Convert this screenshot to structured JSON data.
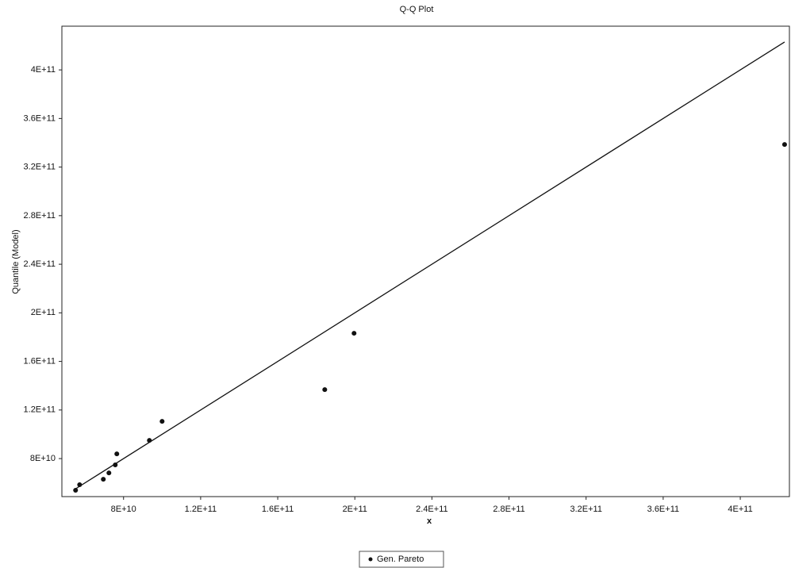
{
  "chart_data": {
    "type": "scatter",
    "title": "Q-Q Plot",
    "x_label": "x",
    "y_label": "Quantile (Model)",
    "series": [
      {
        "name": "Gen. Pareto",
        "color": "#111111",
        "x": [
          55100000000.0,
          57200000000.0,
          69500000000.0,
          72400000000.0,
          75700000000.0,
          76500000000.0,
          93400000000.0,
          100000000000.0,
          184400000000.0,
          199600000000.0,
          423000000000.0
        ],
        "values": [
          53900000000.0,
          58500000000.0,
          63000000000.0,
          68200000000.0,
          74800000000.0,
          83900000000.0,
          95000000000.0,
          110700000000.0,
          136800000000.0,
          183200000000.0,
          338600000000.0
        ]
      }
    ],
    "reference_line": {
      "color": "#111111",
      "x": [
        54000000000.0,
        423000000000.0
      ],
      "values": [
        54000000000.0,
        423000000000.0
      ]
    },
    "xlim": [
      48000000000.0,
      425500000000.0
    ],
    "ylim": [
      48700000000.0,
      436000000000.0
    ],
    "xticks": [
      {
        "value": 80000000000.0,
        "label": "8E+10"
      },
      {
        "value": 120000000000.0,
        "label": "1.2E+11"
      },
      {
        "value": 160000000000.0,
        "label": "1.6E+11"
      },
      {
        "value": 200000000000.0,
        "label": "2E+11"
      },
      {
        "value": 240000000000.0,
        "label": "2.4E+11"
      },
      {
        "value": 280000000000.0,
        "label": "2.8E+11"
      },
      {
        "value": 320000000000.0,
        "label": "3.2E+11"
      },
      {
        "value": 360000000000.0,
        "label": "3.6E+11"
      },
      {
        "value": 400000000000.0,
        "label": "4E+11"
      }
    ],
    "yticks": [
      {
        "value": 80000000000.0,
        "label": "8E+10"
      },
      {
        "value": 120000000000.0,
        "label": "1.2E+11"
      },
      {
        "value": 160000000000.0,
        "label": "1.6E+11"
      },
      {
        "value": 200000000000.0,
        "label": "2E+11"
      },
      {
        "value": 240000000000.0,
        "label": "2.4E+11"
      },
      {
        "value": 280000000000.0,
        "label": "2.8E+11"
      },
      {
        "value": 320000000000.0,
        "label": "3.2E+11"
      },
      {
        "value": 360000000000.0,
        "label": "3.6E+11"
      },
      {
        "value": 400000000000.0,
        "label": "4E+11"
      }
    ],
    "grid": false,
    "legend": "bottom"
  }
}
